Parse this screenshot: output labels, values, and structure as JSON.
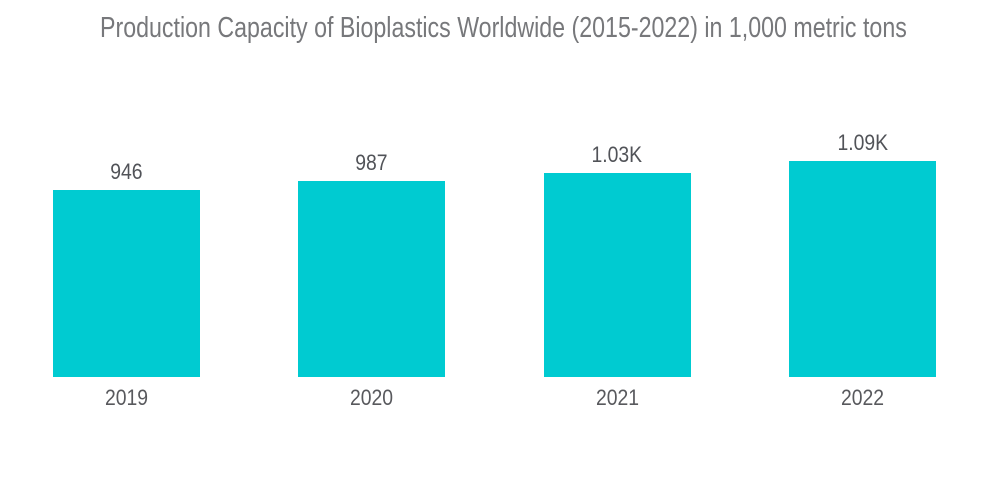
{
  "chart_data": {
    "type": "bar",
    "title": "Production Capacity of Bioplastics Worldwide (2015-2022) in 1,000 metric tons",
    "categories": [
      "2019",
      "2020",
      "2021",
      "2022"
    ],
    "values": [
      946,
      987,
      1030,
      1090
    ],
    "value_labels": [
      "946",
      "987",
      "1.03K",
      "1.09K"
    ],
    "xlabel": "",
    "ylabel": "",
    "ylim": [
      0,
      1090
    ],
    "grid": false,
    "legend": false,
    "axes_visible": false,
    "bar_color": "#00cbd1",
    "title_color": "#77787b",
    "value_label_color": "#515358",
    "category_label_color": "#58595d",
    "background_color": "#ffffff"
  }
}
